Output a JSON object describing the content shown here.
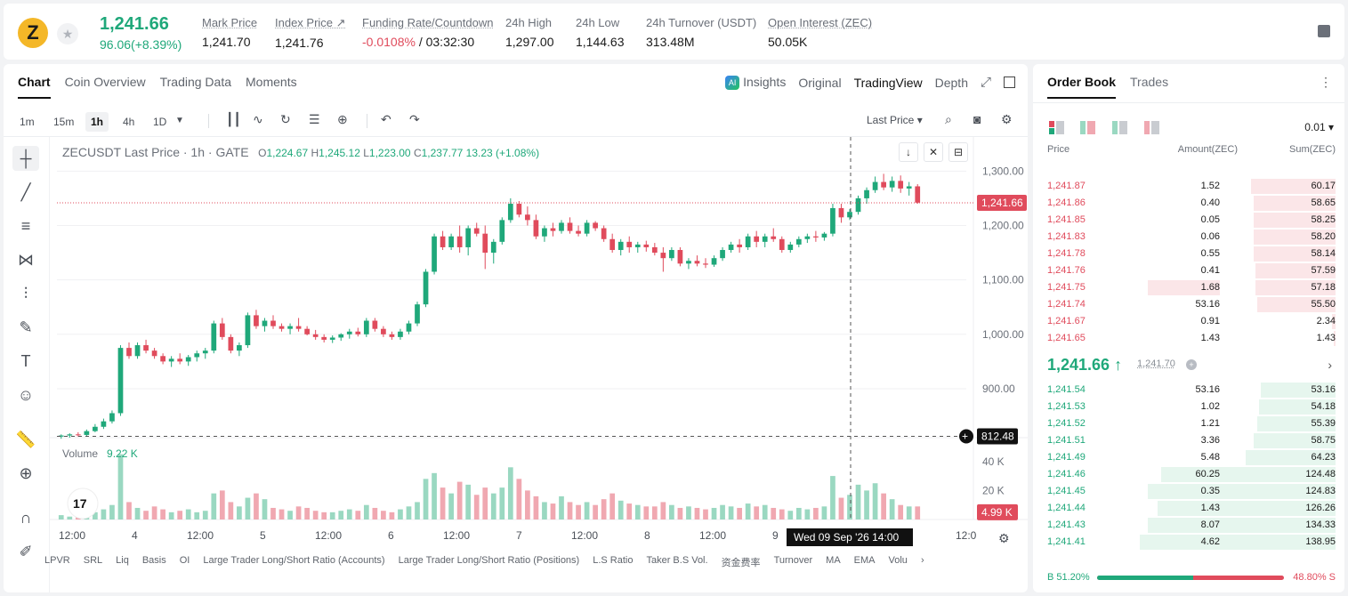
{
  "header": {
    "coin_glyph": "Z",
    "last_price": "1,241.66",
    "change": "96.06(+8.39%)",
    "stats": [
      {
        "label": "Mark Price",
        "value": "1,241.70"
      },
      {
        "label": "Index Price ↗",
        "value": "1,241.76"
      },
      {
        "label": "Funding Rate/Countdown",
        "value_neg": "-0.0108%",
        "value": " / 03:32:30"
      },
      {
        "label": "24h High",
        "value": "1,297.00"
      },
      {
        "label": "24h Low",
        "value": "1,144.63"
      },
      {
        "label": "24h Turnover (USDT)",
        "value": "313.48M"
      },
      {
        "label": "Open Interest (ZEC)",
        "value": "50.05K"
      }
    ]
  },
  "chart_panel": {
    "tabs": [
      "Chart",
      "Coin Overview",
      "Trading Data",
      "Moments"
    ],
    "view_tabs": [
      "Insights",
      "Original",
      "TradingView",
      "Depth"
    ],
    "ai_badge": "AI",
    "intervals": [
      "1m",
      "15m",
      "1h",
      "4h",
      "1D"
    ],
    "active_interval": "1h",
    "price_type": "Last Price",
    "legend": {
      "symbol": "ZECUSDT Last Price · 1h · GATE",
      "o": "1,224.67",
      "h": "1,245.12",
      "l": "1,223.00",
      "c": "1,237.77",
      "chg": "13.23 (+1.08%)"
    },
    "volume_label": "Volume",
    "volume_value": "9.22 K",
    "indicators": [
      "LPVR",
      "SRL",
      "Liq",
      "Basis",
      "OI",
      "Large Trader Long/Short Ratio (Accounts)",
      "Large Trader Long/Short Ratio (Positions)",
      "L.S Ratio",
      "Taker B.S Vol.",
      "资金费率",
      "Turnover",
      "MA",
      "EMA",
      "Volu"
    ],
    "crosshair_time": "Wed 09 Sep '26   14:00",
    "crosshair_price": "812.48",
    "current_price_tag": "1,241.66",
    "current_vol_tag": "4.99 K",
    "tv_logo": "17"
  },
  "chart_data": {
    "type": "candlestick",
    "price_axis_ticks": [
      "1,300.00",
      "1,200.00",
      "1,100.00",
      "1,000.00",
      "900.00"
    ],
    "volume_axis_ticks": [
      "40 K",
      "20 K"
    ],
    "x_tick_labels": [
      "12:00",
      "4",
      "12:00",
      "5",
      "12:00",
      "6",
      "12:00",
      "7",
      "12:00",
      "8",
      "12:00",
      "9",
      "12:0"
    ],
    "ylim": [
      810,
      1330
    ],
    "candles": [
      [
        812,
        816,
        808,
        814
      ],
      [
        814,
        818,
        810,
        816
      ],
      [
        816,
        820,
        812,
        815
      ],
      [
        815,
        825,
        813,
        822
      ],
      [
        822,
        835,
        820,
        830
      ],
      [
        830,
        845,
        826,
        840
      ],
      [
        840,
        860,
        836,
        855
      ],
      [
        855,
        980,
        850,
        975
      ],
      [
        975,
        985,
        955,
        960
      ],
      [
        960,
        985,
        955,
        980
      ],
      [
        980,
        990,
        965,
        970
      ],
      [
        970,
        975,
        955,
        960
      ],
      [
        960,
        965,
        945,
        950
      ],
      [
        950,
        960,
        940,
        955
      ],
      [
        955,
        965,
        945,
        950
      ],
      [
        950,
        962,
        942,
        958
      ],
      [
        958,
        970,
        950,
        965
      ],
      [
        965,
        975,
        955,
        970
      ],
      [
        970,
        1025,
        965,
        1020
      ],
      [
        1020,
        1030,
        990,
        995
      ],
      [
        995,
        1000,
        965,
        970
      ],
      [
        970,
        985,
        960,
        980
      ],
      [
        980,
        1040,
        975,
        1035
      ],
      [
        1035,
        1045,
        1010,
        1015
      ],
      [
        1015,
        1030,
        1005,
        1025
      ],
      [
        1025,
        1035,
        1010,
        1015
      ],
      [
        1015,
        1020,
        1005,
        1010
      ],
      [
        1010,
        1020,
        1000,
        1015
      ],
      [
        1015,
        1030,
        1005,
        1010
      ],
      [
        1010,
        1015,
        998,
        1000
      ],
      [
        1000,
        1008,
        990,
        995
      ],
      [
        995,
        1000,
        985,
        990
      ],
      [
        990,
        998,
        984,
        994
      ],
      [
        994,
        1002,
        988,
        1000
      ],
      [
        1000,
        1010,
        992,
        1005
      ],
      [
        1005,
        1012,
        996,
        1000
      ],
      [
        1000,
        1030,
        995,
        1025
      ],
      [
        1025,
        1030,
        1005,
        1010
      ],
      [
        1010,
        1015,
        995,
        1000
      ],
      [
        1000,
        1005,
        990,
        995
      ],
      [
        995,
        1010,
        990,
        1005
      ],
      [
        1005,
        1025,
        1000,
        1020
      ],
      [
        1020,
        1060,
        1015,
        1055
      ],
      [
        1055,
        1120,
        1050,
        1115
      ],
      [
        1115,
        1185,
        1110,
        1180
      ],
      [
        1180,
        1190,
        1155,
        1160
      ],
      [
        1160,
        1185,
        1155,
        1180
      ],
      [
        1180,
        1200,
        1150,
        1160
      ],
      [
        1160,
        1200,
        1145,
        1195
      ],
      [
        1195,
        1205,
        1180,
        1185
      ],
      [
        1185,
        1200,
        1120,
        1150
      ],
      [
        1150,
        1175,
        1130,
        1170
      ],
      [
        1170,
        1215,
        1165,
        1210
      ],
      [
        1210,
        1250,
        1205,
        1240
      ],
      [
        1240,
        1245,
        1215,
        1220
      ],
      [
        1220,
        1235,
        1200,
        1210
      ],
      [
        1210,
        1220,
        1175,
        1180
      ],
      [
        1180,
        1200,
        1170,
        1195
      ],
      [
        1195,
        1205,
        1180,
        1190
      ],
      [
        1190,
        1210,
        1185,
        1205
      ],
      [
        1205,
        1215,
        1185,
        1190
      ],
      [
        1190,
        1200,
        1180,
        1185
      ],
      [
        1185,
        1210,
        1180,
        1205
      ],
      [
        1205,
        1208,
        1190,
        1195
      ],
      [
        1195,
        1200,
        1170,
        1175
      ],
      [
        1175,
        1185,
        1150,
        1155
      ],
      [
        1155,
        1175,
        1145,
        1170
      ],
      [
        1170,
        1180,
        1150,
        1160
      ],
      [
        1160,
        1170,
        1150,
        1165
      ],
      [
        1165,
        1172,
        1152,
        1160
      ],
      [
        1160,
        1168,
        1145,
        1150
      ],
      [
        1150,
        1160,
        1115,
        1140
      ],
      [
        1140,
        1160,
        1135,
        1155
      ],
      [
        1155,
        1160,
        1125,
        1130
      ],
      [
        1130,
        1140,
        1120,
        1135
      ],
      [
        1135,
        1145,
        1125,
        1130
      ],
      [
        1130,
        1140,
        1122,
        1128
      ],
      [
        1128,
        1145,
        1124,
        1140
      ],
      [
        1140,
        1160,
        1135,
        1155
      ],
      [
        1155,
        1170,
        1150,
        1165
      ],
      [
        1165,
        1175,
        1150,
        1160
      ],
      [
        1160,
        1185,
        1155,
        1180
      ],
      [
        1180,
        1190,
        1160,
        1170
      ],
      [
        1170,
        1185,
        1160,
        1180
      ],
      [
        1180,
        1195,
        1170,
        1175
      ],
      [
        1175,
        1180,
        1150,
        1155
      ],
      [
        1155,
        1170,
        1150,
        1165
      ],
      [
        1165,
        1180,
        1160,
        1175
      ],
      [
        1175,
        1185,
        1168,
        1180
      ],
      [
        1180,
        1190,
        1170,
        1178
      ],
      [
        1178,
        1188,
        1172,
        1185
      ],
      [
        1185,
        1240,
        1180,
        1232
      ],
      [
        1232,
        1240,
        1205,
        1215
      ],
      [
        1215,
        1230,
        1210,
        1225
      ],
      [
        1225,
        1255,
        1220,
        1250
      ],
      [
        1250,
        1270,
        1240,
        1265
      ],
      [
        1265,
        1290,
        1260,
        1280
      ],
      [
        1280,
        1295,
        1265,
        1270
      ],
      [
        1270,
        1290,
        1262,
        1282
      ],
      [
        1282,
        1292,
        1260,
        1268
      ],
      [
        1268,
        1280,
        1255,
        1272
      ],
      [
        1272,
        1276,
        1240,
        1242
      ]
    ],
    "volumes": [
      3,
      2,
      3,
      4,
      5,
      7,
      10,
      45,
      12,
      8,
      6,
      9,
      7,
      5,
      6,
      7,
      5,
      6,
      18,
      20,
      12,
      9,
      15,
      18,
      14,
      8,
      7,
      6,
      9,
      8,
      6,
      5,
      5,
      6,
      7,
      6,
      10,
      8,
      6,
      5,
      7,
      9,
      12,
      28,
      32,
      22,
      18,
      26,
      24,
      17,
      22,
      18,
      22,
      36,
      28,
      20,
      16,
      12,
      11,
      16,
      12,
      10,
      12,
      10,
      14,
      18,
      13,
      11,
      10,
      9,
      9,
      12,
      10,
      8,
      9,
      8,
      7,
      8,
      10,
      9,
      8,
      11,
      9,
      10,
      8,
      7,
      6,
      8,
      7,
      8,
      9,
      30,
      15,
      17,
      24,
      20,
      25,
      18,
      14,
      10,
      9,
      9
    ]
  },
  "order_book": {
    "tabs": [
      "Order Book",
      "Trades"
    ],
    "precision": "0.01",
    "headers": {
      "price": "Price",
      "amount": "Amount(ZEC)",
      "sum": "Sum(ZEC)"
    },
    "asks": [
      {
        "price": "1,241.87",
        "amount": "1.52",
        "sum": "60.17",
        "sum_pct": 0.43,
        "amt_pct": 0
      },
      {
        "price": "1,241.86",
        "amount": "0.40",
        "sum": "58.65",
        "sum_pct": 0.42,
        "amt_pct": 0
      },
      {
        "price": "1,241.85",
        "amount": "0.05",
        "sum": "58.25",
        "sum_pct": 0.42,
        "amt_pct": 0
      },
      {
        "price": "1,241.83",
        "amount": "0.06",
        "sum": "58.20",
        "sum_pct": 0.42,
        "amt_pct": 0
      },
      {
        "price": "1,241.78",
        "amount": "0.55",
        "sum": "58.14",
        "sum_pct": 0.42,
        "amt_pct": 0
      },
      {
        "price": "1,241.76",
        "amount": "0.41",
        "sum": "57.59",
        "sum_pct": 0.41,
        "amt_pct": 0
      },
      {
        "price": "1,241.75",
        "amount": "1.68",
        "sum": "57.18",
        "sum_pct": 0.41,
        "amt_pct": 0.37
      },
      {
        "price": "1,241.74",
        "amount": "53.16",
        "sum": "55.50",
        "sum_pct": 0.4,
        "amt_pct": 0
      },
      {
        "price": "1,241.67",
        "amount": "0.91",
        "sum": "2.34",
        "sum_pct": 0.02,
        "amt_pct": 0
      },
      {
        "price": "1,241.65",
        "amount": "1.43",
        "sum": "1.43",
        "sum_pct": 0.01,
        "amt_pct": 0
      }
    ],
    "mid_price": "1,241.66 ↑",
    "mid_mark": "1,241.70",
    "bids": [
      {
        "price": "1,241.54",
        "amount": "53.16",
        "sum": "53.16",
        "sum_pct": 0.38,
        "amt_pct": 0
      },
      {
        "price": "1,241.53",
        "amount": "1.02",
        "sum": "54.18",
        "sum_pct": 0.39,
        "amt_pct": 0
      },
      {
        "price": "1,241.52",
        "amount": "1.21",
        "sum": "55.39",
        "sum_pct": 0.4,
        "amt_pct": 0
      },
      {
        "price": "1,241.51",
        "amount": "3.36",
        "sum": "58.75",
        "sum_pct": 0.42,
        "amt_pct": 0
      },
      {
        "price": "1,241.49",
        "amount": "5.48",
        "sum": "64.23",
        "sum_pct": 0.46,
        "amt_pct": 0
      },
      {
        "price": "1,241.46",
        "amount": "60.25",
        "sum": "124.48",
        "sum_pct": 0.89,
        "amt_pct": 0
      },
      {
        "price": "1,241.45",
        "amount": "0.35",
        "sum": "124.83",
        "sum_pct": 0.9,
        "amt_pct": 0.37
      },
      {
        "price": "1,241.44",
        "amount": "1.43",
        "sum": "126.26",
        "sum_pct": 0.91,
        "amt_pct": 0
      },
      {
        "price": "1,241.43",
        "amount": "8.07",
        "sum": "134.33",
        "sum_pct": 0.96,
        "amt_pct": 0
      },
      {
        "price": "1,241.41",
        "amount": "4.62",
        "sum": "138.95",
        "sum_pct": 1.0,
        "amt_pct": 0
      }
    ],
    "buy_ratio": "B 51.20%",
    "sell_ratio": "48.80% S",
    "buy_pct": 51.2
  },
  "colors": {
    "up": "#1fa87a",
    "down": "#e04b5c",
    "up_soft": "#9ad8c1",
    "down_soft": "#f0a8b1"
  }
}
